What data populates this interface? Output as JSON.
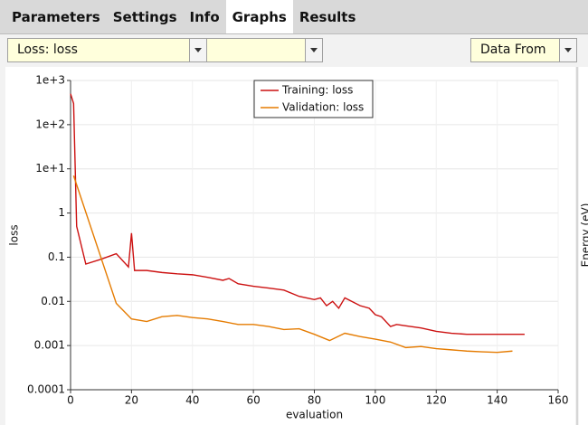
{
  "tabs": [
    "Parameters",
    "Settings",
    "Info",
    "Graphs",
    "Results"
  ],
  "active_tab": 3,
  "selectors": {
    "quantity": "Loss: loss",
    "data_from": "Data From"
  },
  "side_panel_label": "Energy (eV)",
  "chart_data": {
    "type": "line",
    "xlabel": "evaluation",
    "ylabel": "loss",
    "log_y": true,
    "grid": true,
    "legend_position": "top",
    "xlim": [
      0,
      160
    ],
    "xticks": [
      0,
      20,
      40,
      60,
      80,
      100,
      120,
      140,
      160
    ],
    "ylim": [
      0.0001,
      1000
    ],
    "yticks": [
      {
        "value": 1000,
        "label": "1e+3"
      },
      {
        "value": 100,
        "label": "1e+2"
      },
      {
        "value": 10,
        "label": "1e+1"
      },
      1,
      0.1,
      0.01,
      0.001,
      0.0001
    ],
    "series": [
      {
        "name": "Training: loss",
        "color": "#cc1111",
        "x": [
          0,
          1,
          2,
          5,
          10,
          15,
          19,
          20,
          21,
          25,
          30,
          35,
          40,
          45,
          50,
          52,
          55,
          60,
          65,
          70,
          75,
          80,
          82,
          84,
          86,
          88,
          90,
          95,
          98,
          100,
          102,
          105,
          107,
          110,
          115,
          120,
          125,
          130,
          135,
          140,
          149
        ],
        "values": [
          500,
          300,
          0.5,
          0.07,
          0.09,
          0.12,
          0.06,
          0.35,
          0.05,
          0.05,
          0.045,
          0.042,
          0.04,
          0.035,
          0.03,
          0.033,
          0.025,
          0.022,
          0.02,
          0.018,
          0.013,
          0.011,
          0.012,
          0.008,
          0.01,
          0.007,
          0.012,
          0.008,
          0.007,
          0.005,
          0.0045,
          0.0027,
          0.003,
          0.0028,
          0.0025,
          0.0021,
          0.0019,
          0.0018,
          0.0018,
          0.0018,
          0.0018
        ]
      },
      {
        "name": "Validation: loss",
        "color": "#e57b00",
        "x": [
          1,
          15,
          20,
          25,
          30,
          35,
          40,
          45,
          50,
          55,
          60,
          65,
          70,
          75,
          80,
          85,
          90,
          95,
          100,
          105,
          110,
          115,
          120,
          125,
          130,
          135,
          140,
          145
        ],
        "values": [
          7,
          0.009,
          0.004,
          0.0035,
          0.0045,
          0.0048,
          0.0043,
          0.004,
          0.0035,
          0.003,
          0.003,
          0.0027,
          0.0023,
          0.0024,
          0.0018,
          0.0013,
          0.0019,
          0.0016,
          0.0014,
          0.0012,
          0.0009,
          0.00095,
          0.00085,
          0.0008,
          0.00075,
          0.00072,
          0.0007,
          0.00075
        ]
      }
    ]
  }
}
